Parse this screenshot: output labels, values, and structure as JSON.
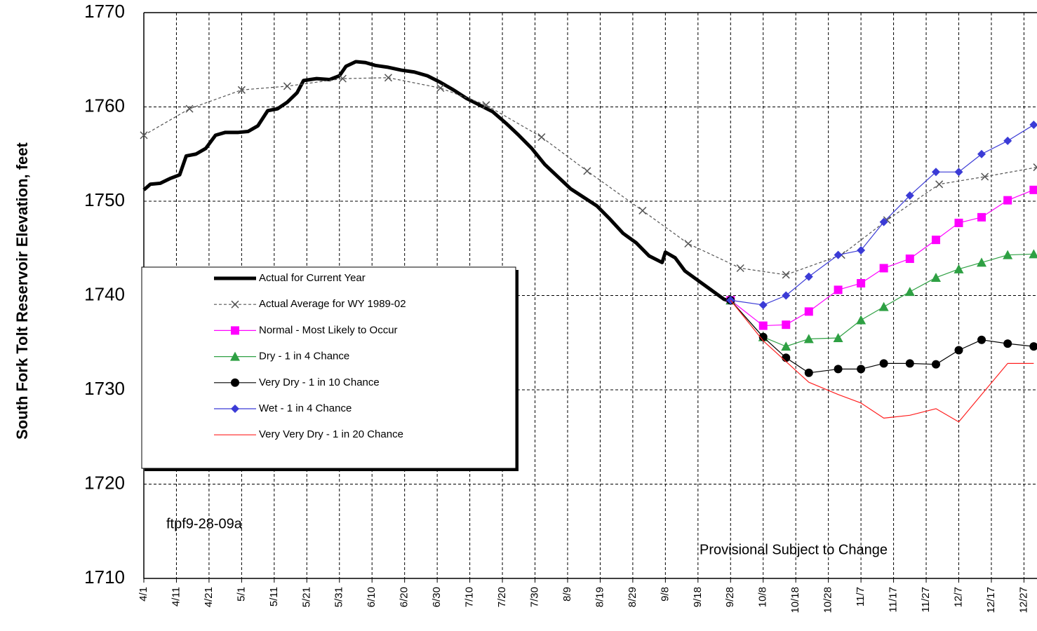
{
  "chart_data": {
    "type": "line",
    "ylabel": "South Fork Tolt Reservoir Elevation, feet",
    "ylim": [
      1710,
      1770
    ],
    "yticks": [
      1710,
      1720,
      1730,
      1740,
      1750,
      1760,
      1770
    ],
    "xlim": [
      "4/1",
      "12/31"
    ],
    "xticks": [
      "4/1",
      "4/11",
      "4/21",
      "5/1",
      "5/11",
      "5/21",
      "5/31",
      "6/10",
      "6/20",
      "6/30",
      "7/10",
      "7/20",
      "7/30",
      "8/9",
      "8/19",
      "8/29",
      "9/8",
      "9/18",
      "9/28",
      "10/8",
      "10/18",
      "10/28",
      "11/7",
      "11/17",
      "11/27",
      "12/7",
      "12/17",
      "12/27"
    ],
    "grid": true,
    "legend": "center left",
    "annotations": [
      "ftpf9-28-09a",
      "Provisional  Subject to Change"
    ],
    "series": [
      {
        "name": "Actual for Current Year",
        "color": "#000000",
        "width": 5,
        "marker": "none",
        "dash": false,
        "x": [
          "4/1",
          "4/3",
          "4/6",
          "4/9",
          "4/12",
          "4/14",
          "4/17",
          "4/20",
          "4/23",
          "4/26",
          "4/30",
          "5/3",
          "5/6",
          "5/9",
          "5/12",
          "5/15",
          "5/18",
          "5/20",
          "5/24",
          "5/28",
          "5/31",
          "6/2",
          "6/5",
          "6/8",
          "6/11",
          "6/15",
          "6/19",
          "6/23",
          "6/27",
          "7/1",
          "7/5",
          "7/9",
          "7/13",
          "7/17",
          "7/21",
          "7/25",
          "7/29",
          "8/2",
          "8/6",
          "8/10",
          "8/14",
          "8/18",
          "8/22",
          "8/26",
          "8/30",
          "9/3",
          "9/7",
          "9/8",
          "9/11",
          "9/14",
          "9/18",
          "9/22",
          "9/26",
          "9/28"
        ],
        "values": [
          1751.2,
          1751.8,
          1751.9,
          1752.4,
          1752.8,
          1754.8,
          1755.0,
          1755.6,
          1757.0,
          1757.3,
          1757.3,
          1757.4,
          1758.0,
          1759.6,
          1759.8,
          1760.5,
          1761.5,
          1762.8,
          1763.0,
          1762.9,
          1763.3,
          1764.3,
          1764.8,
          1764.7,
          1764.4,
          1764.2,
          1763.9,
          1763.7,
          1763.3,
          1762.6,
          1761.8,
          1760.9,
          1760.2,
          1759.5,
          1758.3,
          1757.0,
          1755.6,
          1753.9,
          1752.6,
          1751.3,
          1750.4,
          1749.5,
          1748.1,
          1746.6,
          1745.6,
          1744.2,
          1743.5,
          1744.6,
          1744.0,
          1742.6,
          1741.6,
          1740.6,
          1739.6,
          1739.4
        ]
      },
      {
        "name": "Actual Average for WY 1989-02",
        "color": "#555555",
        "width": 1.2,
        "marker": "x",
        "dash": true,
        "x": [
          "4/1",
          "4/15",
          "5/1",
          "5/15",
          "6/1",
          "6/15",
          "7/1",
          "7/15",
          "8/1",
          "8/15",
          "9/1",
          "9/15",
          "10/1",
          "10/15",
          "11/1",
          "11/15",
          "12/1",
          "12/15",
          "12/31"
        ],
        "values": [
          1757.0,
          1759.8,
          1761.8,
          1762.2,
          1763.0,
          1763.1,
          1762.0,
          1760.2,
          1756.8,
          1753.2,
          1749.0,
          1745.5,
          1742.9,
          1742.2,
          1744.3,
          1748.0,
          1751.8,
          1752.6,
          1753.6
        ]
      },
      {
        "name": "Normal - Most Likely to Occur",
        "color": "#ff00ff",
        "width": 1.2,
        "marker": "square",
        "dash": false,
        "x": [
          "9/28",
          "10/8",
          "10/15",
          "10/22",
          "10/31",
          "11/7",
          "11/14",
          "11/22",
          "11/30",
          "12/7",
          "12/14",
          "12/22",
          "12/30"
        ],
        "values": [
          1739.5,
          1736.8,
          1736.9,
          1738.3,
          1740.6,
          1741.3,
          1742.9,
          1743.9,
          1745.9,
          1747.7,
          1748.3,
          1750.1,
          1751.2
        ]
      },
      {
        "name": "Dry - 1 in 4 Chance",
        "color": "#2ea043",
        "width": 1.2,
        "marker": "triangle",
        "dash": false,
        "x": [
          "9/28",
          "10/8",
          "10/15",
          "10/22",
          "10/31",
          "11/7",
          "11/14",
          "11/22",
          "11/30",
          "12/7",
          "12/14",
          "12/22",
          "12/30"
        ],
        "values": [
          1739.5,
          1735.6,
          1734.6,
          1735.4,
          1735.5,
          1737.4,
          1738.8,
          1740.4,
          1741.9,
          1742.8,
          1743.5,
          1744.3,
          1744.4
        ]
      },
      {
        "name": "Very Dry - 1 in 10 Chance",
        "color": "#000000",
        "width": 1.2,
        "marker": "circle",
        "dash": false,
        "x": [
          "9/28",
          "10/8",
          "10/15",
          "10/22",
          "10/31",
          "11/7",
          "11/14",
          "11/22",
          "11/30",
          "12/7",
          "12/14",
          "12/22",
          "12/30"
        ],
        "values": [
          1739.5,
          1735.6,
          1733.4,
          1731.8,
          1732.2,
          1732.2,
          1732.8,
          1732.8,
          1732.7,
          1734.2,
          1735.3,
          1734.9,
          1734.6
        ]
      },
      {
        "name": "Wet - 1 in 4 Chance",
        "color": "#3b3bd6",
        "width": 1.2,
        "marker": "diamond",
        "dash": false,
        "x": [
          "9/28",
          "10/8",
          "10/15",
          "10/22",
          "10/31",
          "11/7",
          "11/14",
          "11/22",
          "11/30",
          "12/7",
          "12/14",
          "12/22",
          "12/30"
        ],
        "values": [
          1739.5,
          1739.0,
          1740.0,
          1742.0,
          1744.3,
          1744.8,
          1747.8,
          1750.6,
          1753.1,
          1753.1,
          1755.0,
          1756.4,
          1758.1
        ]
      },
      {
        "name": "Very Very Dry - 1 in 20 Chance",
        "color": "#ff2020",
        "width": 1.2,
        "marker": "none",
        "dash": false,
        "x": [
          "9/28",
          "10/8",
          "10/15",
          "10/22",
          "10/31",
          "11/7",
          "11/14",
          "11/22",
          "11/30",
          "12/7",
          "12/14",
          "12/22",
          "12/30"
        ],
        "values": [
          1739.5,
          1735.2,
          1733.0,
          1730.8,
          1729.5,
          1728.6,
          1727.0,
          1727.3,
          1728.0,
          1726.6,
          1729.5,
          1732.8,
          1732.8
        ]
      }
    ]
  }
}
